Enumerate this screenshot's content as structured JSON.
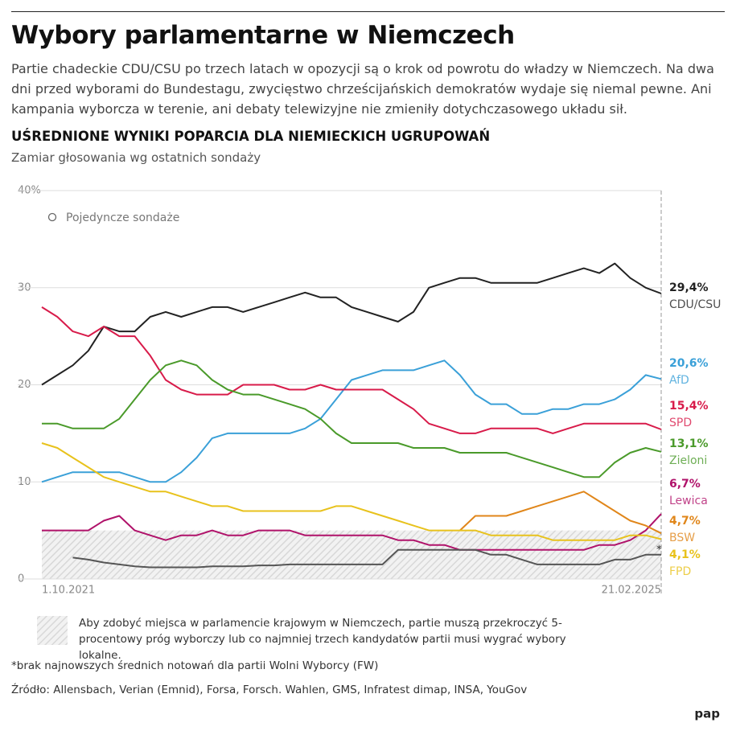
{
  "header": {
    "title": "Wybory parlamentarne w Niemczech",
    "lead": "Partie chadeckie CDU/CSU po trzech latach w opozycji są o krok od powrotu do władzy w Niemczech. Na dwa dni przed wyborami do Bundestagu, zwycięstwo chrześcijańskich demokratów wydaje się niemal pewne. Ani kampania wyborcza w terenie, ani debaty telewizyjne nie zmieniły dotychczasowego układu sił."
  },
  "chart_data": {
    "type": "line",
    "title": "UŚREDNIONE WYNIKI POPARCIA DLA NIEMIECKICH UGRUPOWAŃ",
    "subtitle": "Zamiar głosowania wg ostatnich sondaży",
    "categories": [
      "1.10.2021",
      null,
      null,
      null,
      null,
      null,
      null,
      null,
      null,
      null,
      null,
      null,
      null,
      null,
      null,
      null,
      null,
      null,
      null,
      null,
      null,
      null,
      null,
      null,
      null,
      null,
      null,
      null,
      null,
      null,
      null,
      null,
      null,
      null,
      null,
      null,
      null,
      null,
      null,
      null,
      "21.02.2025"
    ],
    "ylim": [
      0,
      40
    ],
    "yticks": [
      0,
      10,
      20,
      30,
      {
        "value": 40,
        "label": "40%"
      }
    ],
    "grid": true,
    "poll_legend": "Pojedyncze sondaże",
    "threshold": 5,
    "threshold_note": "Aby zdobyć miejsca w parlamencie krajowym w Niemczech, partie muszą przekroczyć 5-procentowy próg wyborczy lub co najmniej trzech kandydatów partii musi wygrać wybory lokalne.",
    "note_marker": "*",
    "series": [
      {
        "name": "CDU/CSU",
        "color": "#222222",
        "values": [
          20,
          21,
          22,
          23.5,
          26,
          25.5,
          25.5,
          27,
          27.5,
          27,
          27.5,
          28,
          28,
          27.5,
          28,
          28.5,
          29,
          29.5,
          29,
          29,
          28,
          27.5,
          27,
          26.5,
          27.5,
          30,
          30.5,
          31,
          31,
          30.5,
          30.5,
          30.5,
          30.5,
          31,
          31.5,
          32,
          31.5,
          32.5,
          31,
          30,
          29.4
        ],
        "value_labels": [
          null,
          null,
          null,
          null,
          null,
          null,
          null,
          null,
          null,
          null,
          null,
          null,
          null,
          null,
          null,
          null,
          null,
          null,
          null,
          null,
          null,
          null,
          null,
          null,
          null,
          null,
          null,
          null,
          null,
          null,
          null,
          null,
          null,
          null,
          null,
          null,
          null,
          null,
          null,
          null,
          "29,4%"
        ]
      },
      {
        "name": "AfD",
        "color": "#3aa0d8",
        "values": [
          10,
          10.5,
          11,
          11,
          11,
          11,
          10.5,
          10,
          10,
          11,
          12.5,
          14.5,
          15,
          15,
          15,
          15,
          15,
          15.5,
          16.5,
          18.5,
          20.5,
          21,
          21.5,
          21.5,
          21.5,
          22,
          22.5,
          21,
          19,
          18,
          18,
          17,
          17,
          17.5,
          17.5,
          18,
          18,
          18.5,
          19.5,
          21,
          20.6
        ],
        "value_labels": [
          null,
          null,
          null,
          null,
          null,
          null,
          null,
          null,
          null,
          null,
          null,
          null,
          null,
          null,
          null,
          null,
          null,
          null,
          null,
          null,
          null,
          null,
          null,
          null,
          null,
          null,
          null,
          null,
          null,
          null,
          null,
          null,
          null,
          null,
          null,
          null,
          null,
          null,
          null,
          null,
          "20,6%"
        ]
      },
      {
        "name": "SPD",
        "color": "#d81b4a",
        "values": [
          28,
          27,
          25.5,
          25,
          26,
          25,
          25,
          23,
          20.5,
          19.5,
          19,
          19,
          19,
          20,
          20,
          20,
          19.5,
          19.5,
          20,
          19.5,
          19.5,
          19.5,
          19.5,
          18.5,
          17.5,
          16,
          15.5,
          15,
          15,
          15.5,
          15.5,
          15.5,
          15.5,
          15,
          15.5,
          16,
          16,
          16,
          16,
          16,
          15.4
        ],
        "value_labels": [
          null,
          null,
          null,
          null,
          null,
          null,
          null,
          null,
          null,
          null,
          null,
          null,
          null,
          null,
          null,
          null,
          null,
          null,
          null,
          null,
          null,
          null,
          null,
          null,
          null,
          null,
          null,
          null,
          null,
          null,
          null,
          null,
          null,
          null,
          null,
          null,
          null,
          null,
          null,
          null,
          "15,4%"
        ]
      },
      {
        "name": "Zieloni",
        "color": "#4a9a2a",
        "values": [
          16,
          16,
          15.5,
          15.5,
          15.5,
          16.5,
          18.5,
          20.5,
          22,
          22.5,
          22,
          20.5,
          19.5,
          19,
          19,
          18.5,
          18,
          17.5,
          16.5,
          15,
          14,
          14,
          14,
          14,
          13.5,
          13.5,
          13.5,
          13,
          13,
          13,
          13,
          12.5,
          12,
          11.5,
          11,
          10.5,
          10.5,
          12,
          13,
          13.5,
          13.1
        ],
        "value_labels": [
          null,
          null,
          null,
          null,
          null,
          null,
          null,
          null,
          null,
          null,
          null,
          null,
          null,
          null,
          null,
          null,
          null,
          null,
          null,
          null,
          null,
          null,
          null,
          null,
          null,
          null,
          null,
          null,
          null,
          null,
          null,
          null,
          null,
          null,
          null,
          null,
          null,
          null,
          null,
          null,
          "13,1%"
        ]
      },
      {
        "name": "Lewica",
        "color": "#b0126a",
        "values": [
          5,
          5,
          5,
          5,
          6,
          6.5,
          5,
          4.5,
          4,
          4.5,
          4.5,
          5,
          4.5,
          4.5,
          5,
          5,
          5,
          4.5,
          4.5,
          4.5,
          4.5,
          4.5,
          4.5,
          4,
          4,
          3.5,
          3.5,
          3,
          3,
          3,
          3,
          3,
          3,
          3,
          3,
          3,
          3.5,
          3.5,
          4,
          5,
          6.7
        ],
        "value_labels": [
          null,
          null,
          null,
          null,
          null,
          null,
          null,
          null,
          null,
          null,
          null,
          null,
          null,
          null,
          null,
          null,
          null,
          null,
          null,
          null,
          null,
          null,
          null,
          null,
          null,
          null,
          null,
          null,
          null,
          null,
          null,
          null,
          null,
          null,
          null,
          null,
          null,
          null,
          null,
          null,
          "6,7%"
        ]
      },
      {
        "name": "BSW",
        "color": "#e0861a",
        "values": [
          null,
          null,
          null,
          null,
          null,
          null,
          null,
          null,
          null,
          null,
          null,
          null,
          null,
          null,
          null,
          null,
          null,
          null,
          null,
          null,
          null,
          null,
          null,
          null,
          null,
          null,
          null,
          5,
          6.5,
          6.5,
          6.5,
          7,
          7.5,
          8,
          8.5,
          9,
          8,
          7,
          6,
          5.5,
          4.7
        ],
        "value_labels": [
          null,
          null,
          null,
          null,
          null,
          null,
          null,
          null,
          null,
          null,
          null,
          null,
          null,
          null,
          null,
          null,
          null,
          null,
          null,
          null,
          null,
          null,
          null,
          null,
          null,
          null,
          null,
          null,
          null,
          null,
          null,
          null,
          null,
          null,
          null,
          null,
          null,
          null,
          null,
          null,
          "4,7%"
        ]
      },
      {
        "name": "FPD",
        "color": "#e8c21c",
        "values": [
          14,
          13.5,
          12.5,
          11.5,
          10.5,
          10,
          9.5,
          9,
          9,
          8.5,
          8,
          7.5,
          7.5,
          7,
          7,
          7,
          7,
          7,
          7,
          7.5,
          7.5,
          7,
          6.5,
          6,
          5.5,
          5,
          5,
          5,
          5,
          4.5,
          4.5,
          4.5,
          4.5,
          4,
          4,
          4,
          4,
          4,
          4.5,
          4.5,
          4.1
        ],
        "value_labels": [
          null,
          null,
          null,
          null,
          null,
          null,
          null,
          null,
          null,
          null,
          null,
          null,
          null,
          null,
          null,
          null,
          null,
          null,
          null,
          null,
          null,
          null,
          null,
          null,
          null,
          null,
          null,
          null,
          null,
          null,
          null,
          null,
          null,
          null,
          null,
          null,
          null,
          null,
          null,
          null,
          "4,1%"
        ]
      },
      {
        "color": "#555555",
        "values": [
          null,
          null,
          2.2,
          2,
          1.7,
          1.5,
          1.3,
          1.2,
          1.2,
          1.2,
          1.2,
          1.3,
          1.3,
          1.3,
          1.4,
          1.4,
          1.5,
          1.5,
          1.5,
          1.5,
          1.5,
          1.5,
          1.5,
          3,
          3,
          3,
          3,
          3,
          3,
          2.5,
          2.5,
          2,
          1.5,
          1.5,
          1.5,
          1.5,
          1.5,
          2,
          2,
          2.5,
          2.5
        ]
      }
    ]
  },
  "footnote": "*brak najnowszych średnich notowań dla partii Wolni Wyborcy (FW)",
  "source": "Źródło: Allensbach, Verian (Emnid), Forsa, Forsch. Wahlen, GMS, Infratest dimap, INSA, YouGov",
  "logo": "pap"
}
